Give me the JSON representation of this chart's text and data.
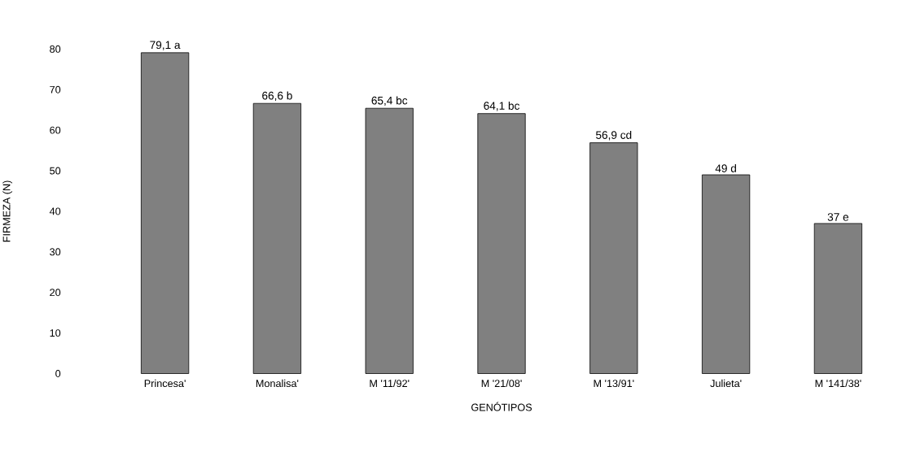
{
  "chart_data": {
    "type": "bar",
    "xlabel": "GENÓTIPOS",
    "ylabel": "FIRMEZA (N)",
    "categories": [
      "Princesa'",
      "Monalisa'",
      "M '11/92'",
      "M '21/08'",
      "M '13/91'",
      "Julieta'",
      "M '141/38'"
    ],
    "values": [
      79.1,
      66.6,
      65.4,
      64.1,
      56.9,
      49,
      37
    ],
    "value_labels": [
      "79,1 a",
      "66,6 b",
      "65,4 bc",
      "64,1 bc",
      "56,9 cd",
      "49 d",
      "37 e"
    ],
    "color": "#808080",
    "ylim": [
      0,
      80
    ],
    "yticks": [
      0,
      10,
      20,
      30,
      40,
      50,
      60,
      70,
      80
    ]
  }
}
